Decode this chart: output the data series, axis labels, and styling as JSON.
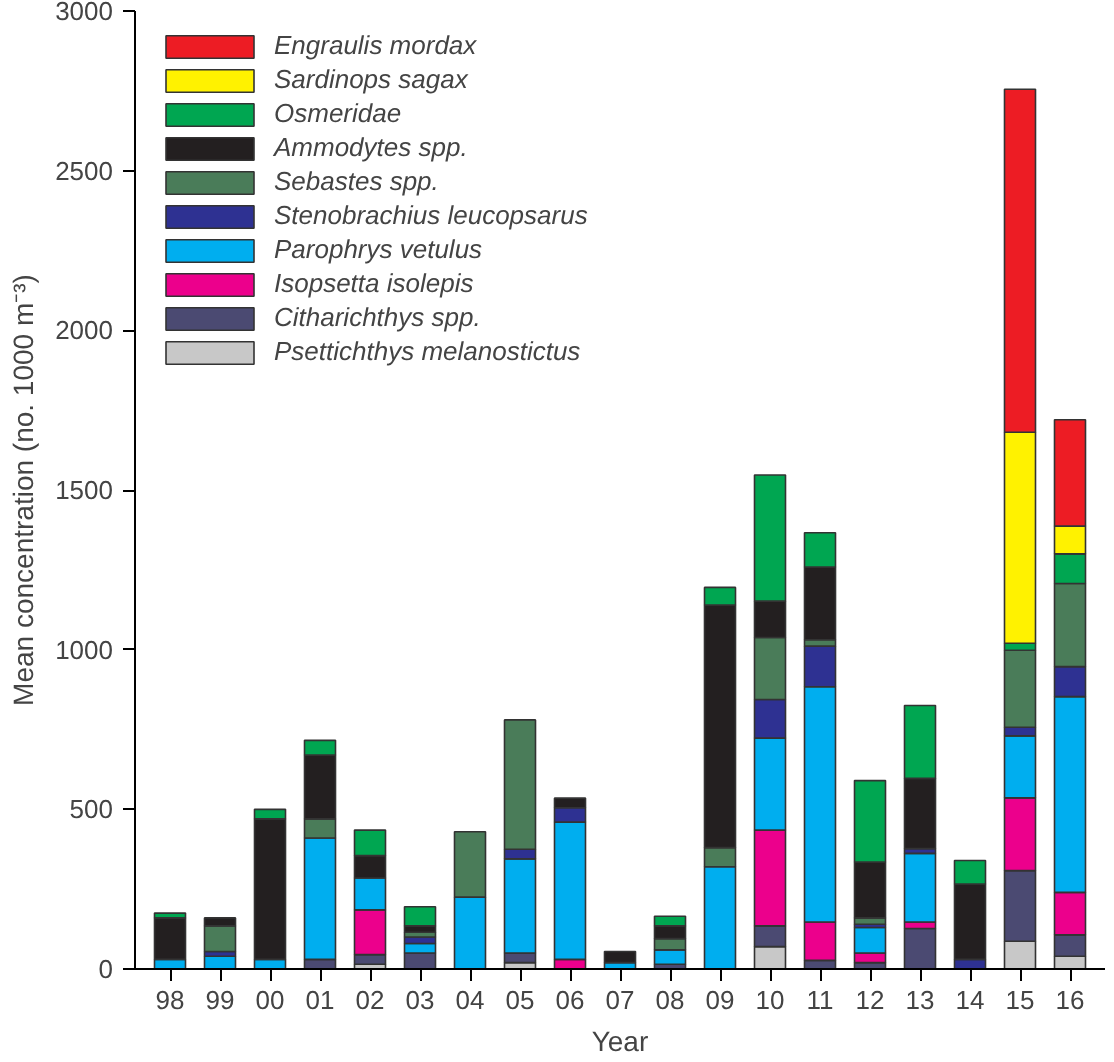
{
  "chart_data": {
    "type": "bar",
    "stacked": true,
    "xlabel": "Year",
    "ylabel": "Mean concentration (no. 1000 m⁻³)",
    "categories": [
      "98",
      "99",
      "00",
      "01",
      "02",
      "03",
      "04",
      "05",
      "06",
      "07",
      "08",
      "09",
      "10",
      "11",
      "12",
      "13",
      "14",
      "15",
      "16"
    ],
    "ylim": [
      0,
      3000
    ],
    "yticks": [
      0,
      500,
      1000,
      1500,
      2000,
      2500,
      3000
    ],
    "grid": false,
    "legend": "top left",
    "series": [
      {
        "name": "Psettichthys melanostictus",
        "color": "#c8c8c8",
        "values": [
          0,
          0,
          0,
          0,
          15,
          0,
          0,
          20,
          0,
          0,
          0,
          0,
          70,
          0,
          0,
          0,
          0,
          87,
          40
        ]
      },
      {
        "name": "Citharichthys spp.",
        "color": "#4b4a72",
        "values": [
          0,
          0,
          0,
          30,
          30,
          50,
          0,
          30,
          0,
          0,
          15,
          0,
          65,
          27,
          20,
          127,
          0,
          221,
          67
        ]
      },
      {
        "name": "Isopsetta isolepis",
        "color": "#ec008c",
        "values": [
          0,
          0,
          0,
          0,
          140,
          0,
          0,
          0,
          30,
          0,
          0,
          0,
          300,
          120,
          30,
          20,
          0,
          228,
          133
        ]
      },
      {
        "name": "Parophrys vetulus",
        "color": "#00aeef",
        "values": [
          30,
          40,
          30,
          380,
          100,
          30,
          225,
          295,
          430,
          20,
          45,
          320,
          288,
          737,
          80,
          215,
          0,
          194,
          613
        ]
      },
      {
        "name": "Stenobrachius leucopsarus",
        "color": "#2e3192",
        "values": [
          0,
          15,
          0,
          0,
          0,
          20,
          0,
          30,
          45,
          0,
          0,
          0,
          121,
          127,
          10,
          15,
          30,
          27,
          94
        ]
      },
      {
        "name": "Sebastes spp.",
        "color": "#4a7c59",
        "values": [
          0,
          80,
          0,
          60,
          0,
          15,
          205,
          405,
          0,
          0,
          35,
          60,
          194,
          20,
          20,
          0,
          0,
          241,
          260
        ]
      },
      {
        "name": "Ammodytes spp.",
        "color": "#231f20",
        "values": [
          130,
          25,
          440,
          200,
          70,
          20,
          0,
          0,
          30,
          35,
          40,
          760,
          114,
          228,
          175,
          220,
          236,
          0,
          0
        ]
      },
      {
        "name": "Osmeridae",
        "color": "#00a651",
        "values": [
          15,
          0,
          30,
          46,
          80,
          60,
          0,
          0,
          0,
          0,
          30,
          55,
          395,
          107,
          255,
          228,
          74,
          22,
          93
        ]
      },
      {
        "name": "Sardinops sagax",
        "color": "#fff200",
        "values": [
          0,
          0,
          0,
          0,
          0,
          0,
          0,
          0,
          0,
          0,
          0,
          0,
          0,
          0,
          0,
          0,
          0,
          661,
          87
        ]
      },
      {
        "name": "Engraulis mordax",
        "color": "#ed1c24",
        "values": [
          0,
          0,
          0,
          0,
          0,
          0,
          0,
          0,
          0,
          0,
          0,
          0,
          0,
          0,
          0,
          0,
          0,
          1074,
          333
        ]
      }
    ]
  }
}
